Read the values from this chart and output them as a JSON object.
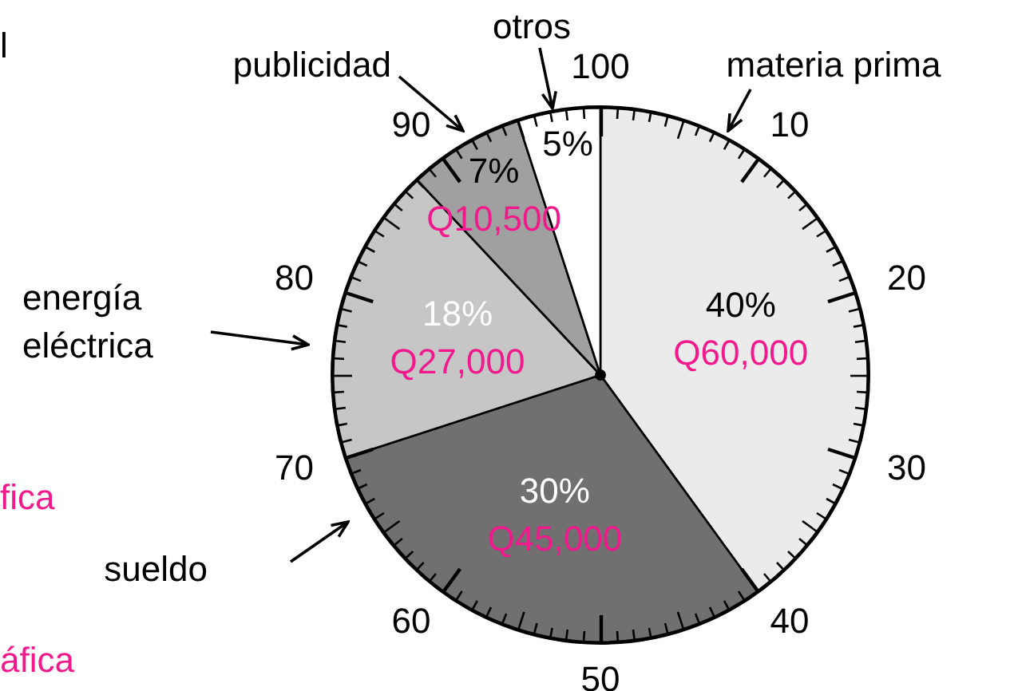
{
  "chart_data": {
    "type": "pie",
    "categories": [
      "materia prima",
      "sueldo",
      "energía eléctrica",
      "publicidad",
      "otros"
    ],
    "values": [
      40,
      30,
      18,
      7,
      5
    ],
    "colors": [
      "#ebebeb",
      "#707070",
      "#c6c6c6",
      "#a0a0a0",
      "#ffffff"
    ],
    "value_labels": [
      "40%",
      "30%",
      "18%",
      "7%",
      "5%"
    ],
    "annotations": [
      {
        "text": "Q60,000",
        "x": "materia prima"
      },
      {
        "text": "Q45,000",
        "x": "sueldo"
      },
      {
        "text": "Q27,000",
        "x": "energía eléctrica"
      },
      {
        "text": "Q10,500",
        "x": "publicidad"
      },
      "l",
      "fica",
      "áfica",
      "10",
      "20",
      "30",
      "40",
      "50",
      "60",
      "70",
      "80",
      "90",
      "100"
    ]
  }
}
